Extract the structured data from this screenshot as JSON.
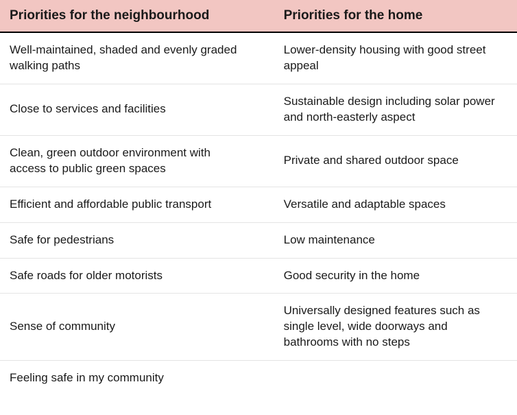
{
  "table": {
    "type": "table",
    "header_bg": "#f2c6c2",
    "header_border_bottom": "#000000",
    "row_border": "#e4e4e4",
    "text_color": "#1a1a1a",
    "header_fontsize": 19,
    "header_fontweight": 700,
    "cell_fontsize": 17,
    "columns": [
      "Priorities for the neighbourhood",
      "Priorities for the home"
    ],
    "rows": [
      [
        "Well-maintained, shaded and evenly graded walking paths",
        "Lower-density housing with good street appeal"
      ],
      [
        "Close to services and facilities",
        "Sustainable design including solar power and north-easterly aspect"
      ],
      [
        "Clean, green outdoor environment with access to public green spaces",
        "Private and shared outdoor space"
      ],
      [
        "Efficient and affordable public transport",
        "Versatile and adaptable spaces"
      ],
      [
        "Safe for pedestrians",
        "Low maintenance"
      ],
      [
        "Safe roads for older motorists",
        "Good security in the home"
      ],
      [
        "Sense of community",
        "Universally designed features such as single level, wide doorways and bathrooms with no steps"
      ],
      [
        "Feeling safe in my community",
        ""
      ]
    ]
  }
}
